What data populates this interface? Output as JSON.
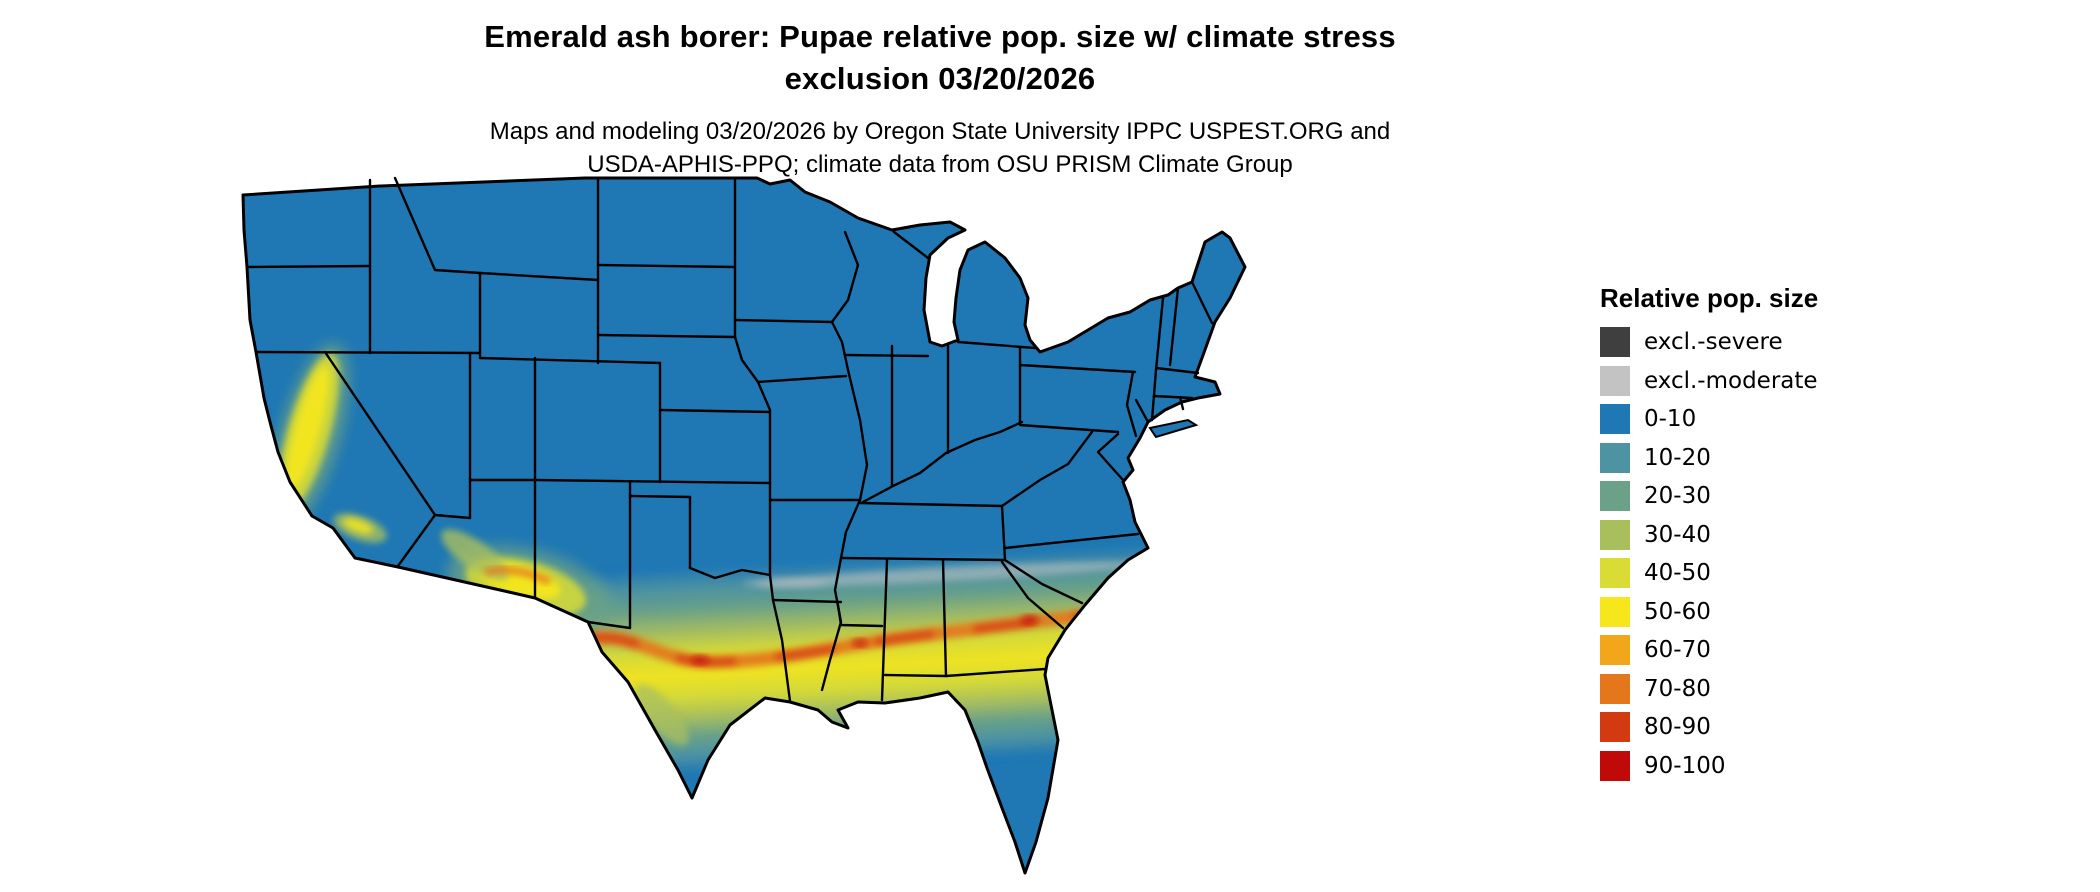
{
  "title": {
    "line1": "Emerald ash borer: Pupae relative pop. size w/ climate stress",
    "line2": "exclusion 03/20/2026"
  },
  "subtitle": {
    "line1": "Maps and modeling 03/20/2026 by Oregon State University IPPC USPEST.ORG and",
    "line2": "USDA-APHIS-PPQ; climate data from OSU PRISM Climate Group"
  },
  "legend": {
    "title": "Relative pop. size",
    "items": [
      {
        "label": "excl.-severe",
        "color": "#3f3f3f"
      },
      {
        "label": "excl.-moderate",
        "color": "#c3c3c3"
      },
      {
        "label": "0-10",
        "color": "#1f78b4"
      },
      {
        "label": "10-20",
        "color": "#4e93a2"
      },
      {
        "label": "20-30",
        "color": "#6ba287"
      },
      {
        "label": "30-40",
        "color": "#a9bf5e"
      },
      {
        "label": "40-50",
        "color": "#d9dc35"
      },
      {
        "label": "50-60",
        "color": "#f6e71d"
      },
      {
        "label": "60-70",
        "color": "#f2a71b"
      },
      {
        "label": "70-80",
        "color": "#e4761c"
      },
      {
        "label": "80-90",
        "color": "#d43a12"
      },
      {
        "label": "90-100",
        "color": "#c00a0a"
      }
    ]
  },
  "map": {
    "base_color": "#1f78b4",
    "outline_color": "#000000"
  }
}
